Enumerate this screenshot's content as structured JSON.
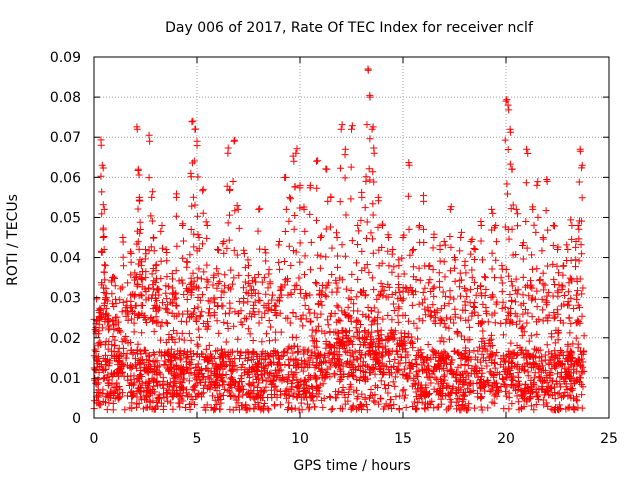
{
  "chart_data": {
    "type": "scatter",
    "title": "Day 006 of 2017, Rate Of TEC Index for receiver nclf",
    "xlabel": "GPS time / hours",
    "ylabel": "ROTI / TECUs",
    "xlim": [
      0,
      25
    ],
    "ylim": [
      0,
      0.09
    ],
    "xticks": [
      0,
      5,
      10,
      15,
      20,
      25
    ],
    "yticks": [
      0,
      0.01,
      0.02,
      0.03,
      0.04,
      0.05,
      0.06,
      0.07,
      0.08,
      0.09
    ],
    "xtick_labels": [
      "0",
      "5",
      "10",
      "15",
      "20",
      "25"
    ],
    "ytick_labels": [
      "0",
      "0.01",
      "0.02",
      "0.03",
      "0.04",
      "0.05",
      "0.06",
      "0.07",
      "0.08",
      "0.09"
    ],
    "grid": true,
    "marker": "+",
    "colors": {
      "series": "#ff0000",
      "grid": "#a0a0a0",
      "axis": "#000000"
    },
    "series": [
      {
        "x": [
          0.1,
          0.2,
          0.3,
          0.35,
          0.4,
          0.45,
          0.5,
          0.55,
          0.6,
          0.7,
          0.9,
          1.0,
          1.2,
          1.4,
          1.6,
          1.8,
          2.0,
          2.1,
          2.15,
          2.2,
          2.25,
          2.3,
          2.5,
          2.7,
          2.8,
          2.9,
          3.0,
          3.1,
          3.3,
          3.5,
          3.8,
          4.0,
          4.3,
          4.5,
          4.7,
          4.8,
          4.9,
          5.0,
          5.1,
          5.3,
          5.5,
          5.8,
          6.0,
          6.3,
          6.5,
          6.6,
          6.8,
          7.0,
          7.3,
          7.5,
          7.8,
          8.0,
          8.3,
          8.5,
          8.8,
          9.0,
          9.3,
          9.5,
          9.7,
          9.8,
          10.0,
          10.2,
          10.5,
          10.8,
          11.0,
          11.3,
          11.5,
          11.8,
          12.0,
          12.2,
          12.5,
          12.8,
          13.0,
          13.2,
          13.3,
          13.4,
          13.5,
          13.6,
          13.8,
          14.0,
          14.3,
          14.5,
          14.8,
          15.0,
          15.3,
          15.5,
          15.8,
          16.0,
          16.3,
          16.5,
          16.8,
          17.0,
          17.3,
          17.5,
          17.8,
          18.0,
          18.3,
          18.5,
          18.8,
          19.0,
          19.3,
          19.5,
          19.8,
          20.0,
          20.1,
          20.2,
          20.3,
          20.5,
          20.8,
          21.0,
          21.3,
          21.5,
          21.8,
          22.0,
          22.3,
          22.5,
          22.8,
          23.0,
          23.2,
          23.4,
          23.5,
          23.6,
          23.7
        ],
        "y": [
          0.021,
          0.018,
          0.027,
          0.068,
          0.063,
          0.045,
          0.052,
          0.038,
          0.031,
          0.022,
          0.035,
          0.018,
          0.014,
          0.045,
          0.028,
          0.041,
          0.035,
          0.072,
          0.062,
          0.055,
          0.047,
          0.038,
          0.042,
          0.069,
          0.055,
          0.045,
          0.038,
          0.032,
          0.048,
          0.042,
          0.036,
          0.055,
          0.048,
          0.039,
          0.061,
          0.074,
          0.072,
          0.069,
          0.045,
          0.057,
          0.048,
          0.035,
          0.042,
          0.044,
          0.066,
          0.057,
          0.069,
          0.052,
          0.041,
          0.038,
          0.035,
          0.052,
          0.042,
          0.037,
          0.028,
          0.044,
          0.06,
          0.055,
          0.064,
          0.066,
          0.058,
          0.052,
          0.058,
          0.064,
          0.045,
          0.062,
          0.055,
          0.045,
          0.072,
          0.067,
          0.072,
          0.048,
          0.055,
          0.059,
          0.087,
          0.08,
          0.072,
          0.066,
          0.055,
          0.048,
          0.045,
          0.042,
          0.038,
          0.045,
          0.063,
          0.042,
          0.048,
          0.054,
          0.038,
          0.045,
          0.042,
          0.044,
          0.052,
          0.04,
          0.045,
          0.038,
          0.044,
          0.042,
          0.048,
          0.035,
          0.052,
          0.048,
          0.038,
          0.079,
          0.078,
          0.072,
          0.062,
          0.052,
          0.043,
          0.067,
          0.052,
          0.058,
          0.045,
          0.059,
          0.048,
          0.042,
          0.038,
          0.042,
          0.048,
          0.044,
          0.048,
          0.067,
          0.063
        ]
      }
    ],
    "dense_band": {
      "x_range": [
        0,
        23.8
      ],
      "typical_y_range": [
        0.002,
        0.035
      ]
    }
  }
}
